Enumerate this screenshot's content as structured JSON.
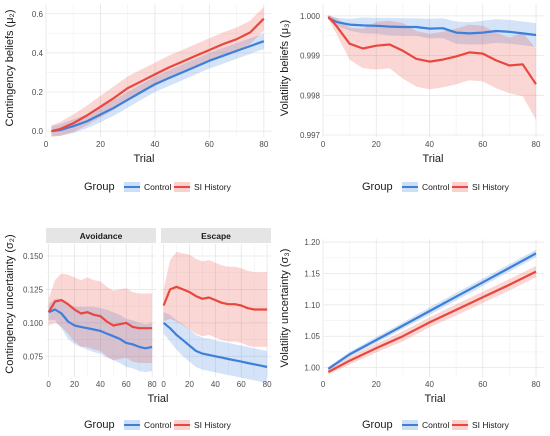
{
  "chart_data": [
    {
      "id": "A",
      "type": "line",
      "ylabel": "Contingency beliefs (μ₂)",
      "xlabel": "Trial",
      "xlim": [
        0,
        83
      ],
      "ylim": [
        -0.03,
        0.65
      ],
      "xticks": [
        0,
        20,
        40,
        60,
        80
      ],
      "yticks": [
        0.0,
        0.2,
        0.4,
        0.6
      ],
      "ytick_labels": [
        "0.0",
        "0.2",
        "0.4",
        "0.6"
      ],
      "grid": true,
      "x": [
        2,
        5,
        10,
        15,
        20,
        25,
        30,
        35,
        40,
        45,
        50,
        55,
        60,
        65,
        70,
        75,
        80
      ],
      "series": [
        {
          "name": "Control",
          "color": "#3d7fd9",
          "values": [
            0.0,
            0.005,
            0.025,
            0.05,
            0.085,
            0.12,
            0.16,
            0.2,
            0.24,
            0.27,
            0.3,
            0.33,
            0.36,
            0.385,
            0.41,
            0.435,
            0.46
          ],
          "band": [
            0.025,
            0.03,
            0.035,
            0.035,
            0.04,
            0.04,
            0.04,
            0.04,
            0.04,
            0.04,
            0.04,
            0.04,
            0.04,
            0.04,
            0.04,
            0.04,
            0.04
          ]
        },
        {
          "name": "SI History",
          "color": "#e8473e",
          "values": [
            0.0,
            0.01,
            0.04,
            0.08,
            0.125,
            0.17,
            0.22,
            0.255,
            0.29,
            0.325,
            0.355,
            0.385,
            0.415,
            0.445,
            0.47,
            0.505,
            0.575
          ],
          "band": [
            0.03,
            0.035,
            0.045,
            0.05,
            0.055,
            0.06,
            0.06,
            0.06,
            0.06,
            0.06,
            0.06,
            0.06,
            0.06,
            0.06,
            0.06,
            0.06,
            0.06
          ]
        }
      ]
    },
    {
      "id": "B",
      "type": "line",
      "ylabel": "Volatility beliefs (μ₃)",
      "xlabel": "Trial",
      "xlim": [
        0,
        83
      ],
      "ylim": [
        0.99695,
        1.0003
      ],
      "xticks": [
        0,
        20,
        40,
        60,
        80
      ],
      "yticks": [
        0.997,
        0.998,
        0.999,
        1.0
      ],
      "ytick_labels": [
        "0.997",
        "0.998",
        "0.999",
        "1.000"
      ],
      "grid": true,
      "x": [
        2,
        5,
        10,
        15,
        20,
        25,
        30,
        35,
        40,
        45,
        50,
        55,
        60,
        65,
        70,
        75,
        80
      ],
      "series": [
        {
          "name": "Control",
          "color": "#3d7fd9",
          "values": [
            0.99995,
            0.99985,
            0.99978,
            0.99976,
            0.99975,
            0.99973,
            0.99972,
            0.99972,
            0.99968,
            0.99969,
            0.99958,
            0.99956,
            0.99958,
            0.99962,
            0.9996,
            0.99956,
            0.99952
          ],
          "band": [
            5e-05,
            0.0001,
            0.00015,
            0.0002,
            0.0002,
            0.00022,
            0.00022,
            0.00022,
            0.00025,
            0.00025,
            0.00028,
            0.00028,
            0.0003,
            0.0003,
            0.0003,
            0.0003,
            0.0003
          ]
        },
        {
          "name": "SI History",
          "color": "#e8473e",
          "values": [
            0.99998,
            0.99975,
            0.9993,
            0.99918,
            0.99925,
            0.99928,
            0.99912,
            0.99892,
            0.99885,
            0.9989,
            0.99898,
            0.99908,
            0.99905,
            0.99888,
            0.99875,
            0.99878,
            0.99828
          ],
          "band": [
            5e-05,
            0.0002,
            0.0004,
            0.0005,
            0.0006,
            0.0006,
            0.0007,
            0.0007,
            0.0007,
            0.0007,
            0.0007,
            0.0007,
            0.0007,
            0.0007,
            0.0007,
            0.0008,
            0.0009
          ]
        }
      ]
    },
    {
      "id": "C1",
      "type": "line",
      "strip": "Avoidance",
      "ylabel": "Contingency uncertainty (σ₂)",
      "xlabel": "Trial",
      "xlim": [
        -2,
        83
      ],
      "ylim": [
        0.0595,
        0.159
      ],
      "xticks": [
        0,
        20,
        40,
        60,
        80
      ],
      "yticks": [
        0.075,
        0.1,
        0.125,
        0.15
      ],
      "ytick_labels": [
        "0.075",
        "0.100",
        "0.125",
        "0.150"
      ],
      "grid": true,
      "x": [
        0,
        5,
        10,
        15,
        20,
        25,
        30,
        35,
        40,
        45,
        50,
        55,
        60,
        65,
        70,
        75,
        80
      ],
      "series": [
        {
          "name": "Control",
          "color": "#3d7fd9",
          "values": [
            0.108,
            0.11,
            0.107,
            0.101,
            0.098,
            0.097,
            0.096,
            0.095,
            0.094,
            0.092,
            0.09,
            0.088,
            0.085,
            0.084,
            0.082,
            0.081,
            0.082
          ],
          "band": [
            0.006,
            0.008,
            0.011,
            0.013,
            0.014,
            0.015,
            0.016,
            0.017,
            0.017,
            0.018,
            0.018,
            0.018,
            0.018,
            0.018,
            0.018,
            0.018,
            0.018
          ]
        },
        {
          "name": "SI History",
          "color": "#e8473e",
          "values": [
            0.108,
            0.116,
            0.117,
            0.114,
            0.11,
            0.107,
            0.108,
            0.106,
            0.105,
            0.101,
            0.098,
            0.099,
            0.1,
            0.097,
            0.096,
            0.096,
            0.096
          ],
          "band": [
            0.01,
            0.016,
            0.02,
            0.022,
            0.024,
            0.025,
            0.026,
            0.026,
            0.026,
            0.026,
            0.026,
            0.026,
            0.026,
            0.026,
            0.026,
            0.026,
            0.026
          ]
        }
      ]
    },
    {
      "id": "C2",
      "type": "line",
      "strip": "Escape",
      "xlabel": "Trial",
      "xlim": [
        -2,
        83
      ],
      "ylim": [
        0.0595,
        0.159
      ],
      "xticks": [
        0,
        20,
        40,
        60,
        80
      ],
      "yticks": [
        0.075,
        0.1,
        0.125,
        0.15
      ],
      "grid": true,
      "x": [
        0,
        5,
        10,
        15,
        20,
        25,
        30,
        35,
        40,
        45,
        50,
        55,
        60,
        65,
        70,
        75,
        80
      ],
      "series": [
        {
          "name": "Control",
          "color": "#3d7fd9",
          "values": [
            0.1,
            0.096,
            0.091,
            0.087,
            0.083,
            0.079,
            0.077,
            0.076,
            0.075,
            0.074,
            0.073,
            0.072,
            0.071,
            0.07,
            0.069,
            0.068,
            0.067
          ],
          "band": [
            0.008,
            0.01,
            0.011,
            0.012,
            0.012,
            0.012,
            0.012,
            0.012,
            0.012,
            0.012,
            0.012,
            0.012,
            0.012,
            0.012,
            0.012,
            0.012,
            0.012
          ]
        },
        {
          "name": "SI History",
          "color": "#e8473e",
          "values": [
            0.113,
            0.125,
            0.127,
            0.125,
            0.123,
            0.12,
            0.118,
            0.119,
            0.117,
            0.115,
            0.114,
            0.114,
            0.113,
            0.111,
            0.11,
            0.11,
            0.11
          ],
          "band": [
            0.012,
            0.022,
            0.026,
            0.027,
            0.028,
            0.028,
            0.028,
            0.028,
            0.028,
            0.028,
            0.028,
            0.028,
            0.028,
            0.028,
            0.028,
            0.028,
            0.028
          ]
        }
      ]
    },
    {
      "id": "D",
      "type": "line",
      "ylabel": "Volatility uncertainty (σ₃)",
      "xlabel": "Trial",
      "xlim": [
        0,
        83
      ],
      "ylim": [
        0.985,
        1.205
      ],
      "xticks": [
        0,
        20,
        40,
        60,
        80
      ],
      "yticks": [
        1.0,
        1.05,
        1.1,
        1.15,
        1.2
      ],
      "ytick_labels": [
        "1.00",
        "1.05",
        "1.10",
        "1.15",
        "1.20"
      ],
      "grid": true,
      "x": [
        2,
        10,
        20,
        30,
        40,
        50,
        60,
        70,
        80
      ],
      "series": [
        {
          "name": "Control",
          "color": "#3d7fd9",
          "values": [
            0.998,
            1.021,
            1.044,
            1.067,
            1.09,
            1.113,
            1.136,
            1.159,
            1.182
          ],
          "band": [
            0.003,
            0.004,
            0.005,
            0.005,
            0.006,
            0.006,
            0.006,
            0.006,
            0.006
          ]
        },
        {
          "name": "SI History",
          "color": "#e8473e",
          "values": [
            0.993,
            1.011,
            1.031,
            1.05,
            1.072,
            1.092,
            1.112,
            1.132,
            1.153
          ],
          "band": [
            0.004,
            0.006,
            0.007,
            0.008,
            0.008,
            0.009,
            0.009,
            0.009,
            0.009
          ]
        }
      ]
    }
  ],
  "legend": {
    "title": "Group",
    "items": [
      {
        "label": "Control",
        "color": "#3d7fd9"
      },
      {
        "label": "SI History",
        "color": "#e8473e"
      }
    ]
  }
}
